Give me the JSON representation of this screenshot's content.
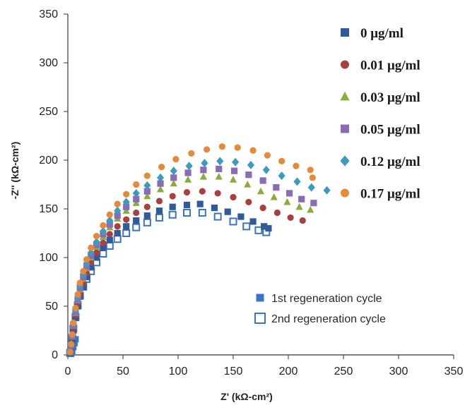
{
  "chart_data": {
    "type": "scatter",
    "xlabel": "Z' (kΩ-cm²)",
    "ylabel": "-Z'' (kΩ-cm²)",
    "xlim": [
      0,
      350
    ],
    "ylim": [
      0,
      350
    ],
    "xticks": [
      0,
      50,
      100,
      150,
      200,
      250,
      300,
      350
    ],
    "yticks": [
      0,
      50,
      100,
      150,
      200,
      250,
      300,
      350
    ],
    "grid": false,
    "legend_placement": "top-right",
    "series": [
      {
        "name": "0 μg/ml",
        "marker": "square-filled",
        "color": "#2f5b9a",
        "points": [
          [
            2,
            2
          ],
          [
            3,
            8
          ],
          [
            4,
            15
          ],
          [
            5,
            25
          ],
          [
            7,
            38
          ],
          [
            9,
            50
          ],
          [
            11,
            60
          ],
          [
            14,
            70
          ],
          [
            17,
            80
          ],
          [
            21,
            90
          ],
          [
            26,
            100
          ],
          [
            32,
            110
          ],
          [
            38,
            118
          ],
          [
            45,
            125
          ],
          [
            53,
            132
          ],
          [
            62,
            138
          ],
          [
            72,
            143
          ],
          [
            83,
            148
          ],
          [
            95,
            152
          ],
          [
            108,
            154
          ],
          [
            120,
            155
          ],
          [
            133,
            151
          ],
          [
            145,
            147
          ],
          [
            157,
            142
          ],
          [
            168,
            137
          ],
          [
            178,
            132
          ],
          [
            182,
            130
          ]
        ]
      },
      {
        "name": "0.01 μg/ml",
        "marker": "circle-filled",
        "color": "#a84040",
        "points": [
          [
            2,
            3
          ],
          [
            3,
            10
          ],
          [
            4,
            18
          ],
          [
            5,
            28
          ],
          [
            7,
            41
          ],
          [
            9,
            53
          ],
          [
            11,
            63
          ],
          [
            14,
            74
          ],
          [
            17,
            84
          ],
          [
            21,
            95
          ],
          [
            26,
            105
          ],
          [
            32,
            115
          ],
          [
            38,
            124
          ],
          [
            45,
            132
          ],
          [
            53,
            139
          ],
          [
            62,
            146
          ],
          [
            72,
            152
          ],
          [
            83,
            158
          ],
          [
            95,
            163
          ],
          [
            108,
            167
          ],
          [
            122,
            168
          ],
          [
            136,
            166
          ],
          [
            150,
            162
          ],
          [
            164,
            157
          ],
          [
            177,
            151
          ],
          [
            190,
            146
          ],
          [
            202,
            141
          ],
          [
            213,
            138
          ]
        ]
      },
      {
        "name": "0.03 μg/ml",
        "marker": "triangle-filled",
        "color": "#8aac3c",
        "points": [
          [
            2,
            3
          ],
          [
            3,
            10
          ],
          [
            4,
            19
          ],
          [
            5,
            30
          ],
          [
            7,
            43
          ],
          [
            9,
            56
          ],
          [
            11,
            67
          ],
          [
            14,
            78
          ],
          [
            17,
            89
          ],
          [
            21,
            100
          ],
          [
            26,
            111
          ],
          [
            32,
            121
          ],
          [
            38,
            131
          ],
          [
            45,
            140
          ],
          [
            53,
            148
          ],
          [
            62,
            156
          ],
          [
            72,
            163
          ],
          [
            84,
            170
          ],
          [
            96,
            176
          ],
          [
            109,
            180
          ],
          [
            123,
            183
          ],
          [
            137,
            183
          ],
          [
            150,
            180
          ],
          [
            163,
            175
          ],
          [
            175,
            168
          ],
          [
            187,
            162
          ],
          [
            199,
            157
          ],
          [
            210,
            152
          ],
          [
            220,
            149
          ]
        ]
      },
      {
        "name": "0.05 μg/ml",
        "marker": "square-filled",
        "color": "#8a6bb5",
        "points": [
          [
            2,
            3
          ],
          [
            3,
            10
          ],
          [
            4,
            19
          ],
          [
            5,
            31
          ],
          [
            7,
            44
          ],
          [
            9,
            57
          ],
          [
            11,
            69
          ],
          [
            14,
            80
          ],
          [
            17,
            91
          ],
          [
            21,
            102
          ],
          [
            26,
            113
          ],
          [
            32,
            124
          ],
          [
            38,
            134
          ],
          [
            45,
            143
          ],
          [
            53,
            152
          ],
          [
            62,
            160
          ],
          [
            72,
            168
          ],
          [
            84,
            176
          ],
          [
            96,
            182
          ],
          [
            109,
            187
          ],
          [
            123,
            190
          ],
          [
            137,
            191
          ],
          [
            151,
            189
          ],
          [
            164,
            185
          ],
          [
            177,
            179
          ],
          [
            189,
            172
          ],
          [
            201,
            166
          ],
          [
            212,
            160
          ],
          [
            223,
            156
          ]
        ]
      },
      {
        "name": "0.12 μg/ml",
        "marker": "diamond-filled",
        "color": "#3b9bbf",
        "points": [
          [
            2,
            3
          ],
          [
            3,
            11
          ],
          [
            4,
            20
          ],
          [
            5,
            32
          ],
          [
            7,
            46
          ],
          [
            9,
            59
          ],
          [
            11,
            71
          ],
          [
            14,
            83
          ],
          [
            17,
            94
          ],
          [
            21,
            105
          ],
          [
            26,
            116
          ],
          [
            32,
            127
          ],
          [
            38,
            138
          ],
          [
            45,
            148
          ],
          [
            53,
            157
          ],
          [
            62,
            166
          ],
          [
            72,
            174
          ],
          [
            84,
            182
          ],
          [
            96,
            189
          ],
          [
            110,
            194
          ],
          [
            124,
            197
          ],
          [
            138,
            199
          ],
          [
            152,
            198
          ],
          [
            166,
            195
          ],
          [
            180,
            190
          ],
          [
            194,
            184
          ],
          [
            208,
            178
          ],
          [
            221,
            172
          ],
          [
            235,
            169
          ]
        ]
      },
      {
        "name": "0.17 μg/ml",
        "marker": "circle-filled",
        "color": "#e58a3a",
        "points": [
          [
            2,
            3
          ],
          [
            3,
            11
          ],
          [
            4,
            21
          ],
          [
            5,
            33
          ],
          [
            7,
            48
          ],
          [
            9,
            62
          ],
          [
            11,
            74
          ],
          [
            14,
            86
          ],
          [
            17,
            98
          ],
          [
            21,
            110
          ],
          [
            26,
            122
          ],
          [
            32,
            133
          ],
          [
            38,
            144
          ],
          [
            45,
            155
          ],
          [
            53,
            165
          ],
          [
            62,
            175
          ],
          [
            72,
            184
          ],
          [
            85,
            193
          ],
          [
            98,
            201
          ],
          [
            112,
            207
          ],
          [
            126,
            211
          ],
          [
            140,
            214
          ],
          [
            154,
            213
          ],
          [
            168,
            210
          ],
          [
            181,
            205
          ],
          [
            194,
            199
          ],
          [
            207,
            194
          ],
          [
            220,
            190
          ],
          [
            222,
            182
          ]
        ]
      }
    ],
    "legend2": [
      {
        "label": "1st regeneration cycle",
        "marker": "square-filled",
        "color": "#3b74c2"
      },
      {
        "label": "2nd regeneration cycle",
        "marker": "square-open",
        "color": "#3b74c2"
      }
    ],
    "regeneration_points": [
      {
        "marker": "square-filled",
        "color": "#3b74c2",
        "points": [
          [
            3,
            1
          ],
          [
            4,
            4
          ],
          [
            5,
            8
          ],
          [
            6,
            12
          ],
          [
            7,
            16
          ]
        ]
      },
      {
        "marker": "square-open",
        "color": "#3b74c2",
        "points": [
          [
            2,
            2
          ],
          [
            3,
            9
          ],
          [
            4,
            17
          ],
          [
            5,
            27
          ],
          [
            7,
            39
          ],
          [
            9,
            51
          ],
          [
            11,
            61
          ],
          [
            14,
            70
          ],
          [
            17,
            78
          ],
          [
            21,
            86
          ],
          [
            26,
            95
          ],
          [
            32,
            104
          ],
          [
            38,
            112
          ],
          [
            45,
            119
          ],
          [
            53,
            125
          ],
          [
            62,
            131
          ],
          [
            72,
            136
          ],
          [
            83,
            141
          ],
          [
            95,
            144
          ],
          [
            108,
            146
          ],
          [
            122,
            146
          ],
          [
            136,
            142
          ],
          [
            150,
            137
          ],
          [
            162,
            132
          ],
          [
            173,
            128
          ],
          [
            180,
            126
          ]
        ]
      }
    ]
  }
}
